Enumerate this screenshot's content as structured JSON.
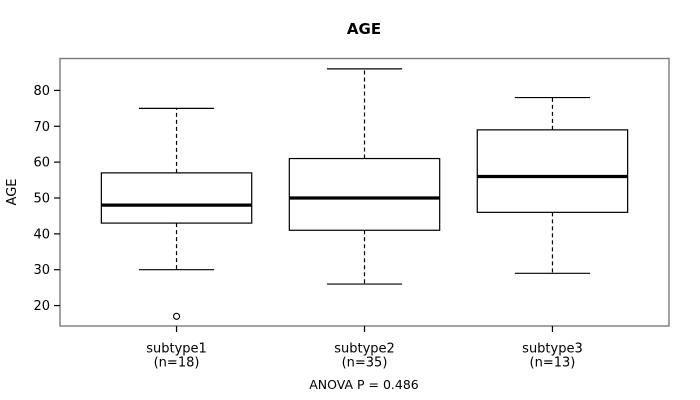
{
  "chart_data": {
    "type": "boxplot",
    "title": "AGE",
    "ylabel": "AGE",
    "annotation": "ANOVA P = 0.486",
    "ylim": [
      14.3,
      88.9
    ],
    "yticks": [
      20,
      30,
      40,
      50,
      60,
      70,
      80
    ],
    "grid": false,
    "whisker_line_style": "dashed",
    "groups": [
      {
        "label": "subtype1",
        "sublabel": "(n=18)",
        "whisker_low": 30,
        "q1": 43,
        "median": 48,
        "q3": 57,
        "whisker_high": 75,
        "outliers": [
          17
        ]
      },
      {
        "label": "subtype2",
        "sublabel": "(n=35)",
        "whisker_low": 26,
        "q1": 41,
        "median": 50,
        "q3": 61,
        "whisker_high": 86,
        "outliers": []
      },
      {
        "label": "subtype3",
        "sublabel": "(n=13)",
        "whisker_low": 29,
        "q1": 46,
        "median": 56,
        "q3": 69,
        "whisker_high": 78,
        "outliers": []
      }
    ],
    "colors": {
      "background": "#ffffff",
      "plot_border": "#7a7a7a",
      "line": "#000000",
      "median": "#000000",
      "box_fill": "#ffffff",
      "text": "#000000"
    }
  }
}
